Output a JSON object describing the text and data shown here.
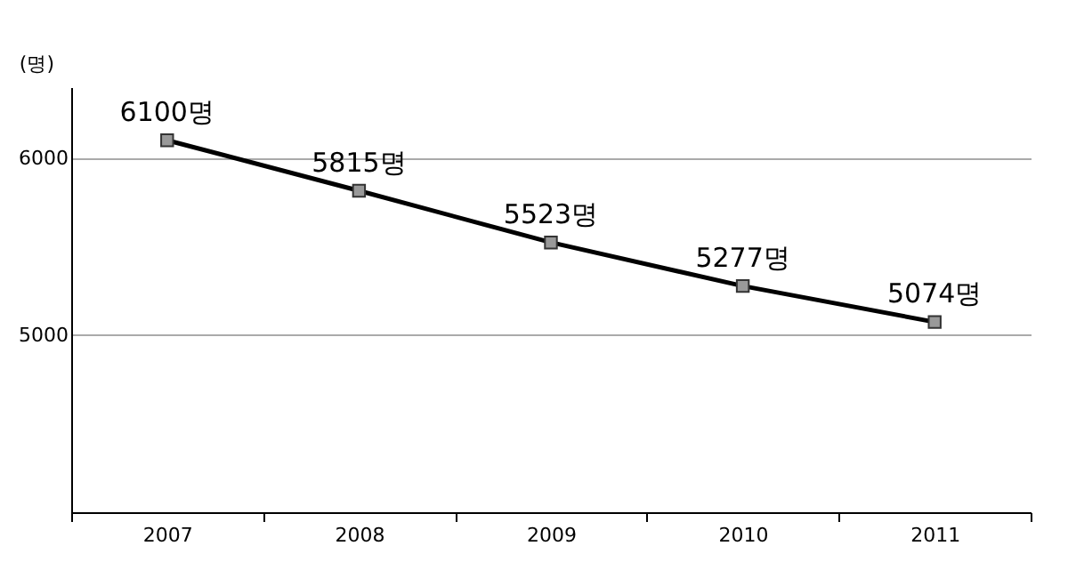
{
  "chart_data": {
    "type": "line",
    "ylabel": "(명)",
    "categories": [
      "2007",
      "2008",
      "2009",
      "2010",
      "2011"
    ],
    "series": [
      {
        "color": "#000000",
        "values": [
          6100,
          5815,
          5523,
          5277,
          5074
        ]
      }
    ],
    "value_labels": [
      "6100명",
      "5815명",
      "5523명",
      "5277명",
      "5074명"
    ],
    "ylim": [
      4000,
      6400
    ],
    "yticks": [
      5000,
      6000
    ],
    "grid": "y",
    "marker": "square",
    "line_style": "solid"
  }
}
